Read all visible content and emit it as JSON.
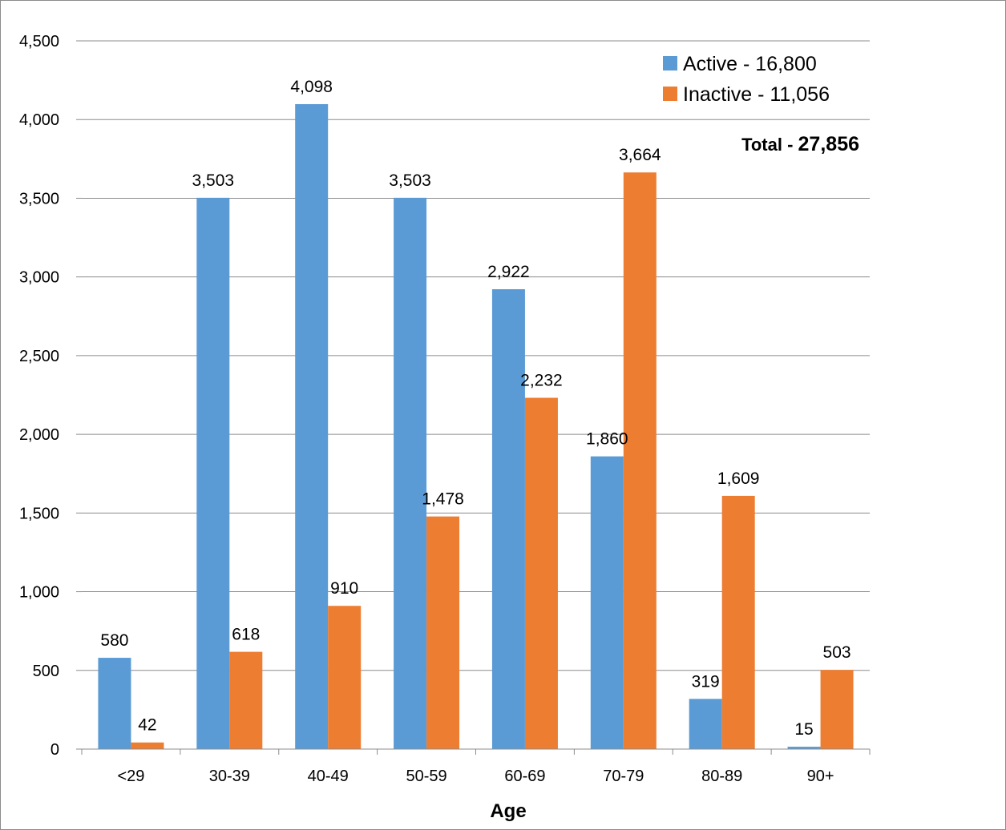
{
  "chart_data": {
    "type": "bar",
    "categories": [
      "<29",
      "30-39",
      "40-49",
      "50-59",
      "60-69",
      "70-79",
      "80-89",
      "90+"
    ],
    "series": [
      {
        "name": "Active - 16,800",
        "color": "#5B9BD5",
        "values": [
          580,
          3503,
          4098,
          3503,
          2922,
          1860,
          319,
          15
        ]
      },
      {
        "name": "Inactive - 11,056",
        "color": "#ED7D31",
        "values": [
          42,
          618,
          910,
          1478,
          2232,
          3664,
          1609,
          503
        ]
      }
    ],
    "xlabel": "Age",
    "ylabel": "",
    "ylim": [
      0,
      4500
    ],
    "yticks": [
      0,
      500,
      1000,
      1500,
      2000,
      2500,
      3000,
      3500,
      4000,
      4500
    ],
    "grid": true,
    "legend_position": "top-right",
    "total_prefix": "Total - ",
    "total_value": "27,856"
  }
}
